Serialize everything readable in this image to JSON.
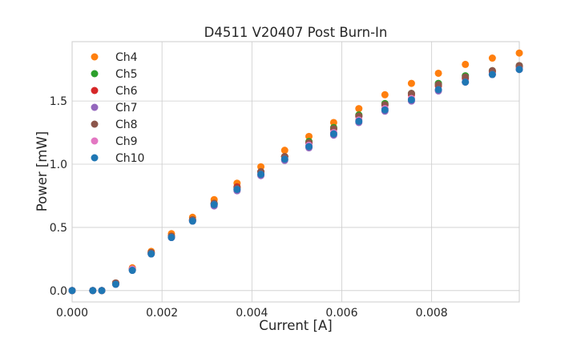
{
  "chart_data": {
    "type": "scatter",
    "title": "D4511 V20407 Post Burn-In",
    "xlabel": "Current [A]",
    "ylabel": "Power [mW]",
    "xlim": [
      0,
      0.00995
    ],
    "ylim": [
      -0.09,
      1.97
    ],
    "xticks": [
      0,
      0.002,
      0.004,
      0.006,
      0.008
    ],
    "xtick_labels": [
      "0.000",
      "0.002",
      "0.004",
      "0.006",
      "0.008"
    ],
    "yticks": [
      0,
      0.5,
      1.0,
      1.5
    ],
    "ytick_labels": [
      "0.0",
      "0.5",
      "1.0",
      "1.5"
    ],
    "grid": true,
    "legend_position": "top-left",
    "x": [
      0,
      0.00046,
      0.00066,
      0.00097,
      0.00134,
      0.00176,
      0.00221,
      0.00268,
      0.00316,
      0.00367,
      0.0042,
      0.00473,
      0.00527,
      0.00582,
      0.00638,
      0.00696,
      0.00755,
      0.00815,
      0.00875,
      0.00935,
      0.00995
    ],
    "series": [
      {
        "name": "Ch4",
        "color": "#ff7f0e",
        "values": [
          0,
          0,
          0,
          0.06,
          0.18,
          0.31,
          0.45,
          0.58,
          0.72,
          0.85,
          0.98,
          1.11,
          1.22,
          1.33,
          1.44,
          1.55,
          1.64,
          1.72,
          1.79,
          1.84,
          1.88
        ]
      },
      {
        "name": "Ch5",
        "color": "#2ca02c",
        "values": [
          0,
          0,
          0,
          0.06,
          0.17,
          0.3,
          0.43,
          0.56,
          0.69,
          0.82,
          0.94,
          1.06,
          1.18,
          1.29,
          1.39,
          1.48,
          1.56,
          1.64,
          1.7,
          1.74,
          1.78
        ]
      },
      {
        "name": "Ch6",
        "color": "#d62728",
        "values": [
          0,
          0,
          0,
          0.06,
          0.17,
          0.3,
          0.43,
          0.56,
          0.69,
          0.82,
          0.94,
          1.06,
          1.17,
          1.28,
          1.38,
          1.47,
          1.55,
          1.62,
          1.68,
          1.73,
          1.77
        ]
      },
      {
        "name": "Ch7",
        "color": "#9467bd",
        "values": [
          0,
          0,
          0,
          0.05,
          0.16,
          0.29,
          0.42,
          0.55,
          0.67,
          0.79,
          0.91,
          1.03,
          1.13,
          1.23,
          1.33,
          1.42,
          1.5,
          1.58,
          1.65,
          1.71,
          1.75
        ]
      },
      {
        "name": "Ch8",
        "color": "#8c564b",
        "values": [
          0,
          0,
          0,
          0.06,
          0.17,
          0.3,
          0.43,
          0.56,
          0.69,
          0.81,
          0.94,
          1.06,
          1.17,
          1.28,
          1.38,
          1.47,
          1.56,
          1.63,
          1.69,
          1.74,
          1.78
        ]
      },
      {
        "name": "Ch9",
        "color": "#e377c2",
        "values": [
          0,
          0,
          0,
          0.05,
          0.17,
          0.29,
          0.42,
          0.55,
          0.68,
          0.8,
          0.92,
          1.04,
          1.15,
          1.25,
          1.35,
          1.44,
          1.52,
          1.59,
          1.65,
          1.71,
          1.75
        ]
      },
      {
        "name": "Ch10",
        "color": "#1f77b4",
        "values": [
          0,
          0,
          0,
          0.05,
          0.16,
          0.29,
          0.42,
          0.55,
          0.68,
          0.8,
          0.92,
          1.04,
          1.14,
          1.24,
          1.34,
          1.43,
          1.51,
          1.59,
          1.65,
          1.71,
          1.75
        ]
      }
    ]
  }
}
